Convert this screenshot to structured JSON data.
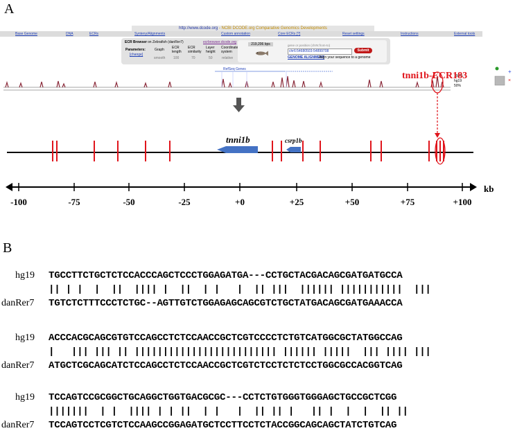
{
  "panel_a_label": "A",
  "panel_b_label": "B",
  "browser": {
    "url_prefix": "http://www.dcode.org",
    "url_suffix": " - NCBI DCODE.org Comparative Genomics Developments",
    "nav_items": [
      "Base Genome",
      "DNA",
      "ECRs",
      "Synteny/Alignments",
      "Custom annotation",
      "Core ECRs [?]",
      "Reset settings",
      "Instructions",
      "External tools"
    ],
    "ecr_title": "ECR Browser",
    "ecr_on": "on Zebrafish (danRer7)",
    "ecr_site": "ecrbrowser.dcode.org",
    "parameters_label": "Parameters:",
    "change_link": "[change]",
    "param_headers": [
      "Graph",
      "ECR length",
      "ECR similarity",
      "Layer height",
      "Coordinate system"
    ],
    "param_values": [
      "smooth",
      "100",
      "70",
      "50",
      "relative"
    ],
    "bps": "219,206 bps",
    "gene_hint": "gene or position (chrN:from-to)",
    "gene_input": "chr6:54680503-54899708",
    "submit": "Submit",
    "genome_alignment": "GENOME ALIGNMENT",
    "align_text": "Align your sequence to a genome",
    "refseq": "RefSeq Genes",
    "track_pcts": [
      "100%",
      "hg19",
      "50%"
    ]
  },
  "ecr_label": "tnni1b-ECR183",
  "genes": {
    "tnni1b": "tnni1b",
    "csrp1b": "csrp1b"
  },
  "scale": {
    "unit": "kb",
    "ticks": [
      "-100",
      "-75",
      "-50",
      "-25",
      "+0",
      "+25",
      "+50",
      "+75",
      "+100"
    ]
  },
  "alignment": {
    "species_top": "hg19",
    "species_bottom": "danRer7",
    "blocks": [
      {
        "top": "TGCCTTCTGCTCTCCACCCAGCTCCCTGGAGATGA---CCTGCTACGACAGCGATGATGCCA",
        "match": "|| | |  |  ||  |||| |  ||  | |   |  || |||  |||||| |||||||||||  |||",
        "bottom": "TGTCTCTTTCCCTCTGC--AGTTGTCTGGAGAGCAGCGTCTGCTATGACAGCGATGAAACCA"
      },
      {
        "top": "ACCCACGCAGCGTGTCCAGCCTCTCCAACCGCTCGTCCCCTCTGTCATGGCGCTATGGCCAG",
        "match": "|   ||| ||| || ||||||||||||||||||||||||| |||||| |||||  ||| |||| |||",
        "bottom": "ATGCTCGCAGCATCTCCAGCCTCTCCAACCGCTCGTCTCCTCTCTCCTGGCGCCACGGTCAG"
      },
      {
        "top": "TCCAGTCCGCGGCTGCAGGCTGGTGACGCGC---CCTCTGTGGGTGGGAGCTGCCGCTCGG",
        "match": "|||||||  | |  |||| | | ||  | |   |  || || |   || |  |  |  || ||",
        "bottom": "TCCAGTCCTCGTCTCCAAGCCGGAGATGCTCCTTCCTCTACCGGCAGCAGCTATCTGTCAG"
      }
    ]
  }
}
